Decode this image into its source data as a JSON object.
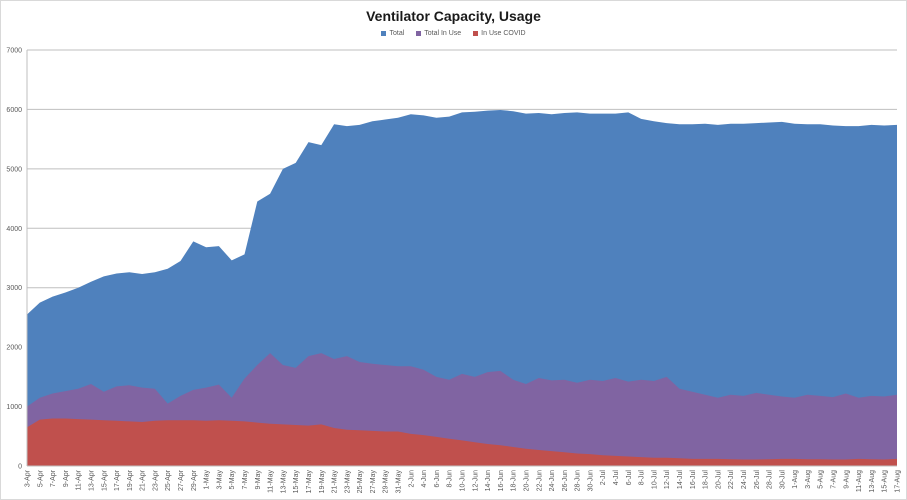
{
  "chart_data": {
    "type": "area",
    "title": "Ventilator Capacity, Usage",
    "xlabel": "",
    "ylabel": "",
    "ylim": [
      0,
      7000
    ],
    "yticks": [
      0,
      1000,
      2000,
      3000,
      4000,
      5000,
      6000,
      7000
    ],
    "grid": true,
    "legend_position": "top",
    "categories": [
      "3-Apr",
      "5-Apr",
      "7-Apr",
      "9-Apr",
      "11-Apr",
      "13-Apr",
      "15-Apr",
      "17-Apr",
      "19-Apr",
      "21-Apr",
      "23-Apr",
      "25-Apr",
      "27-Apr",
      "29-Apr",
      "1-May",
      "3-May",
      "5-May",
      "7-May",
      "9-May",
      "11-May",
      "13-May",
      "15-May",
      "17-May",
      "19-May",
      "21-May",
      "23-May",
      "25-May",
      "27-May",
      "29-May",
      "31-May",
      "2-Jun",
      "4-Jun",
      "6-Jun",
      "8-Jun",
      "10-Jun",
      "12-Jun",
      "14-Jun",
      "16-Jun",
      "18-Jun",
      "20-Jun",
      "22-Jun",
      "24-Jun",
      "26-Jun",
      "28-Jun",
      "30-Jun",
      "2-Jul",
      "4-Jul",
      "6-Jul",
      "8-Jul",
      "10-Jul",
      "12-Jul",
      "14-Jul",
      "16-Jul",
      "18-Jul",
      "20-Jul",
      "22-Jul",
      "24-Jul",
      "26-Jul",
      "28-Jul",
      "30-Jul",
      "1-Aug",
      "3-Aug",
      "5-Aug",
      "7-Aug",
      "9-Aug",
      "11-Aug",
      "13-Aug",
      "15-Aug",
      "17-Aug"
    ],
    "series": [
      {
        "name": "Total",
        "color": "#4f81bd",
        "values": [
          2550,
          2750,
          2850,
          2920,
          3000,
          3100,
          3190,
          3240,
          3260,
          3230,
          3260,
          3320,
          3450,
          3780,
          3680,
          3700,
          3460,
          3560,
          4450,
          4580,
          5000,
          5100,
          5450,
          5400,
          5750,
          5720,
          5740,
          5800,
          5830,
          5860,
          5920,
          5900,
          5860,
          5880,
          5950,
          5960,
          5980,
          5990,
          5970,
          5930,
          5940,
          5920,
          5940,
          5950,
          5930,
          5930,
          5930,
          5950,
          5840,
          5800,
          5770,
          5750,
          5750,
          5760,
          5740,
          5760,
          5760,
          5770,
          5780,
          5790,
          5760,
          5750,
          5750,
          5730,
          5720,
          5720,
          5740,
          5730,
          5740
        ]
      },
      {
        "name": "Total In Use",
        "color": "#8064a2",
        "values": [
          1000,
          1150,
          1220,
          1260,
          1300,
          1380,
          1250,
          1340,
          1360,
          1320,
          1300,
          1050,
          1180,
          1280,
          1320,
          1370,
          1150,
          1470,
          1700,
          1900,
          1700,
          1650,
          1850,
          1900,
          1800,
          1850,
          1750,
          1720,
          1700,
          1680,
          1680,
          1620,
          1500,
          1450,
          1550,
          1500,
          1580,
          1600,
          1450,
          1380,
          1480,
          1440,
          1450,
          1400,
          1450,
          1430,
          1480,
          1420,
          1450,
          1430,
          1500,
          1300,
          1250,
          1200,
          1150,
          1200,
          1180,
          1230,
          1200,
          1170,
          1150,
          1200,
          1180,
          1160,
          1220,
          1150,
          1180,
          1170,
          1200
        ]
      },
      {
        "name": "In Use COVID",
        "color": "#c0504d",
        "values": [
          650,
          780,
          800,
          800,
          790,
          780,
          770,
          760,
          750,
          740,
          760,
          770,
          770,
          770,
          760,
          770,
          760,
          750,
          730,
          710,
          700,
          690,
          680,
          700,
          640,
          610,
          600,
          590,
          580,
          580,
          540,
          520,
          490,
          460,
          430,
          400,
          370,
          350,
          320,
          290,
          270,
          250,
          230,
          210,
          200,
          180,
          170,
          160,
          150,
          140,
          140,
          130,
          120,
          120,
          120,
          115,
          110,
          110,
          115,
          120,
          120,
          115,
          115,
          110,
          110,
          120,
          115,
          110,
          120
        ]
      }
    ]
  },
  "legend": {
    "items": [
      {
        "label": "Total",
        "color": "#4f81bd"
      },
      {
        "label": "Total In Use",
        "color": "#8064a2"
      },
      {
        "label": "In Use COVID",
        "color": "#c0504d"
      }
    ]
  }
}
